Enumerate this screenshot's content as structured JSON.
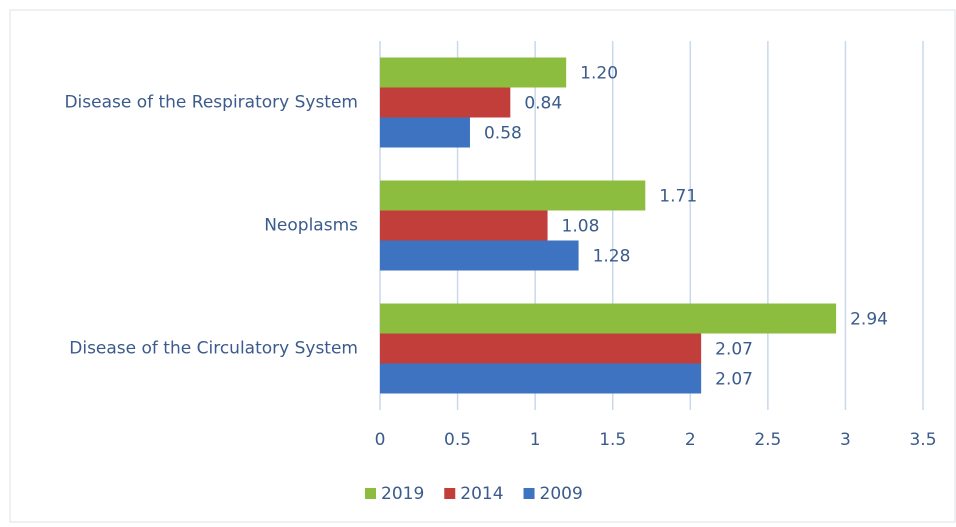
{
  "chart_data": {
    "type": "bar",
    "orientation": "horizontal",
    "categories": [
      "Disease of the Respiratory System",
      "Neoplasms",
      "Disease of the Circulatory System"
    ],
    "series": [
      {
        "name": "2019",
        "color": "#8dbd3e",
        "values": [
          1.2,
          1.71,
          2.94
        ],
        "value_labels": [
          "1.20",
          "1.71",
          "2.94"
        ]
      },
      {
        "name": "2014",
        "color": "#c23e3a",
        "values": [
          0.84,
          1.08,
          2.07
        ],
        "value_labels": [
          "0.84",
          "1.08",
          "2.07"
        ]
      },
      {
        "name": "2009",
        "color": "#3e73c1",
        "values": [
          0.58,
          1.28,
          2.07
        ],
        "value_labels": [
          "0.58",
          "1.28",
          "2.07"
        ]
      }
    ],
    "xlim": [
      0,
      3.5
    ],
    "xticks": [
      0,
      0.5,
      1,
      1.5,
      2,
      2.5,
      3,
      3.5
    ],
    "grid": true,
    "legend": "bottom"
  }
}
